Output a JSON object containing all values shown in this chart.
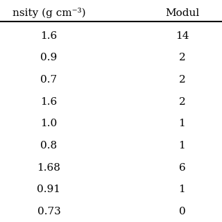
{
  "col1_header": "nsity (g cm⁻³)",
  "col2_header": "Modul",
  "rows": [
    {
      "density": "1.6",
      "modulus": "14"
    },
    {
      "density": "0.9",
      "modulus": "2"
    },
    {
      "density": "0.7",
      "modulus": "2"
    },
    {
      "density": "1.6",
      "modulus": "2"
    },
    {
      "density": "1.0",
      "modulus": "1"
    },
    {
      "density": "0.8",
      "modulus": "1"
    },
    {
      "density": "1.68",
      "modulus": "6"
    },
    {
      "density": "0.91",
      "modulus": "1"
    },
    {
      "density": "0.73",
      "modulus": "0"
    }
  ],
  "bg_color": "#ffffff",
  "header_line_color": "#000000",
  "text_color": "#000000",
  "font_size": 11,
  "header_font_size": 11
}
